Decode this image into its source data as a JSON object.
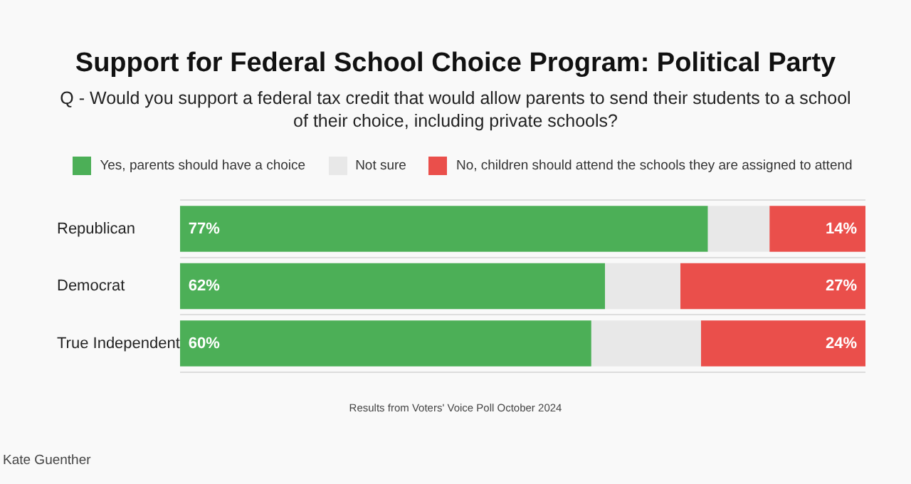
{
  "chart_data": {
    "type": "bar",
    "orientation": "horizontal",
    "stacked": true,
    "title": "Support for Federal School Choice Program: Political Party",
    "subtitle": "Q - Would you support a federal tax credit that would allow parents to send their students to a school of their choice, including private schools?",
    "categories": [
      "Republican",
      "Democrat",
      "True Independent"
    ],
    "series": [
      {
        "name": "Yes, parents should have a choice",
        "color": "#4caf57",
        "values": [
          77,
          62,
          60
        ],
        "value_labels": [
          "77%",
          "62%",
          "60%"
        ]
      },
      {
        "name": "Not sure",
        "color": "#e8e8e8",
        "values": [
          9,
          11,
          16
        ],
        "value_labels": [
          null,
          null,
          null
        ]
      },
      {
        "name": "No, children should attend the schools they are assigned to attend",
        "color": "#ea4f4b",
        "values": [
          14,
          27,
          24
        ],
        "value_labels": [
          "14%",
          "27%",
          "24%"
        ]
      }
    ],
    "xlim": [
      0,
      100
    ],
    "tick_labels": "y",
    "grid": "y",
    "legend": "top",
    "annotations": [
      "Results from Voters' Voice Poll October 2024",
      "Kate Guenther"
    ]
  }
}
